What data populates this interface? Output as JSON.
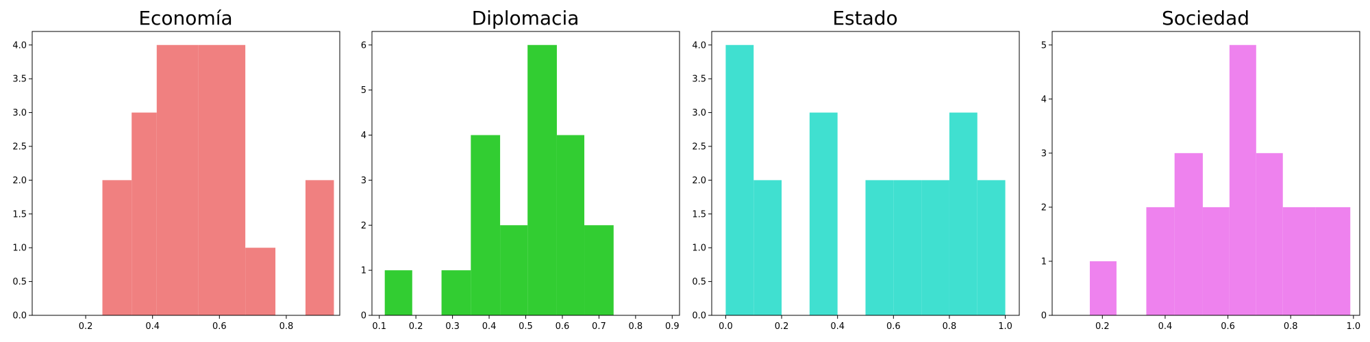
{
  "chart_data": [
    {
      "type": "bar",
      "title": "Economía",
      "color": "#f08080",
      "xlim": [
        0.04,
        0.96
      ],
      "ylim": [
        0,
        4.2
      ],
      "xticks": [
        0.2,
        0.4,
        0.6,
        0.8
      ],
      "xtick_labels": [
        "0.2",
        "0.4",
        "0.6",
        "0.8"
      ],
      "yticks": [
        0,
        0.5,
        1,
        1.5,
        2,
        2.5,
        3,
        3.5,
        4
      ],
      "ytick_labels": [
        "0.0",
        "0.5",
        "1.0",
        "1.5",
        "2.0",
        "2.5",
        "3.0",
        "3.5",
        "4.0"
      ],
      "bins": [
        {
          "x0": 0.25,
          "x1": 0.3375,
          "value": 2
        },
        {
          "x0": 0.3375,
          "x1": 0.4125,
          "value": 3
        },
        {
          "x0": 0.4125,
          "x1": 0.5375,
          "value": 4
        },
        {
          "x0": 0.5375,
          "x1": 0.6775,
          "value": 4
        },
        {
          "x0": 0.6775,
          "x1": 0.7675,
          "value": 1
        },
        {
          "x0": 0.7675,
          "x1": 0.8575,
          "value": 0
        },
        {
          "x0": 0.8575,
          "x1": 0.9425,
          "value": 2
        }
      ]
    },
    {
      "type": "bar",
      "title": "Diplomacia",
      "color": "#32cd32",
      "xlim": [
        0.08,
        0.92
      ],
      "ylim": [
        0,
        6.3
      ],
      "xticks": [
        0.1,
        0.2,
        0.3,
        0.4,
        0.5,
        0.6,
        0.7,
        0.8,
        0.9
      ],
      "xtick_labels": [
        "0.1",
        "0.2",
        "0.3",
        "0.4",
        "0.5",
        "0.6",
        "0.7",
        "0.8",
        "0.9"
      ],
      "yticks": [
        0,
        1,
        2,
        3,
        4,
        5,
        6
      ],
      "ytick_labels": [
        "0",
        "1",
        "2",
        "3",
        "4",
        "5",
        "6"
      ],
      "bins": [
        {
          "x0": 0.115,
          "x1": 0.19,
          "value": 1
        },
        {
          "x0": 0.19,
          "x1": 0.27,
          "value": 0
        },
        {
          "x0": 0.27,
          "x1": 0.35,
          "value": 1
        },
        {
          "x0": 0.35,
          "x1": 0.43,
          "value": 4
        },
        {
          "x0": 0.43,
          "x1": 0.505,
          "value": 2
        },
        {
          "x0": 0.505,
          "x1": 0.585,
          "value": 6
        },
        {
          "x0": 0.585,
          "x1": 0.66,
          "value": 4
        },
        {
          "x0": 0.66,
          "x1": 0.74,
          "value": 2
        }
      ]
    },
    {
      "type": "bar",
      "title": "Estado",
      "color": "#40e0d0",
      "xlim": [
        -0.05,
        1.05
      ],
      "ylim": [
        0,
        4.2
      ],
      "xticks": [
        0,
        0.2,
        0.4,
        0.6,
        0.8,
        1.0
      ],
      "xtick_labels": [
        "0.0",
        "0.2",
        "0.4",
        "0.6",
        "0.8",
        "1.0"
      ],
      "yticks": [
        0,
        0.5,
        1,
        1.5,
        2,
        2.5,
        3,
        3.5,
        4
      ],
      "ytick_labels": [
        "0.0",
        "0.5",
        "1.0",
        "1.5",
        "2.0",
        "2.5",
        "3.0",
        "3.5",
        "4.0"
      ],
      "bins": [
        {
          "x0": 0.0,
          "x1": 0.1,
          "value": 4
        },
        {
          "x0": 0.1,
          "x1": 0.2,
          "value": 2
        },
        {
          "x0": 0.2,
          "x1": 0.3,
          "value": 0
        },
        {
          "x0": 0.3,
          "x1": 0.4,
          "value": 3
        },
        {
          "x0": 0.4,
          "x1": 0.5,
          "value": 0
        },
        {
          "x0": 0.5,
          "x1": 0.6,
          "value": 2
        },
        {
          "x0": 0.6,
          "x1": 0.7,
          "value": 2
        },
        {
          "x0": 0.7,
          "x1": 0.8,
          "value": 2
        },
        {
          "x0": 0.8,
          "x1": 0.9,
          "value": 3
        },
        {
          "x0": 0.9,
          "x1": 1.0,
          "value": 2
        }
      ]
    },
    {
      "type": "bar",
      "title": "Sociedad",
      "color": "#ee82ee",
      "xlim": [
        0.04,
        1.02
      ],
      "ylim": [
        0,
        5.25
      ],
      "xticks": [
        0.2,
        0.4,
        0.6,
        0.8,
        1.0
      ],
      "xtick_labels": [
        "0.2",
        "0.4",
        "0.6",
        "0.8",
        "1.0"
      ],
      "yticks": [
        0,
        1,
        2,
        3,
        4,
        5
      ],
      "ytick_labels": [
        "0",
        "1",
        "2",
        "3",
        "4",
        "5"
      ],
      "bins": [
        {
          "x0": 0.16,
          "x1": 0.245,
          "value": 1
        },
        {
          "x0": 0.245,
          "x1": 0.34,
          "value": 0
        },
        {
          "x0": 0.34,
          "x1": 0.43,
          "value": 2
        },
        {
          "x0": 0.43,
          "x1": 0.52,
          "value": 3
        },
        {
          "x0": 0.52,
          "x1": 0.605,
          "value": 2
        },
        {
          "x0": 0.605,
          "x1": 0.69,
          "value": 5
        },
        {
          "x0": 0.69,
          "x1": 0.775,
          "value": 3
        },
        {
          "x0": 0.775,
          "x1": 0.88,
          "value": 2
        },
        {
          "x0": 0.88,
          "x1": 0.99,
          "value": 2
        }
      ]
    }
  ]
}
